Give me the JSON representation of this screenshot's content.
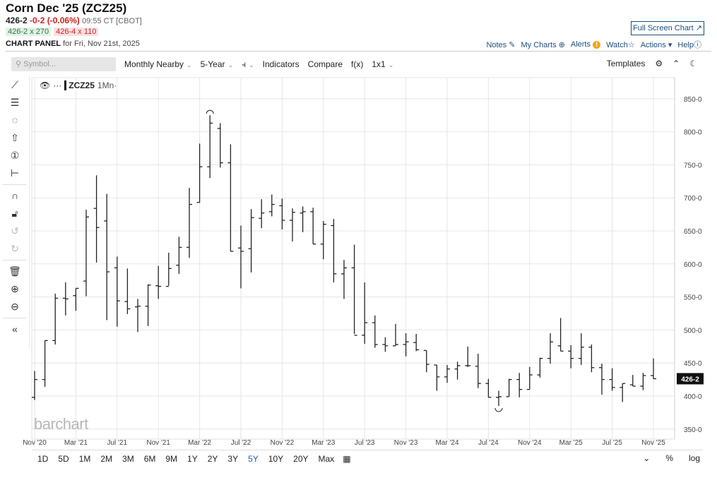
{
  "header": {
    "title": "Corn Dec '25 (ZCZ25)",
    "last": "426-2",
    "change": "-0-2 (-0.06%)",
    "time": "09:55 CT [CBOT]",
    "bid": "426-2 x 270",
    "ask": "426-4 x 110",
    "panel_label": "CHART PANEL",
    "panel_date": "for Fri, Nov 21st, 2025",
    "full_screen": "Full Screen Chart ↗"
  },
  "links": {
    "notes": "Notes",
    "my_charts": "My Charts",
    "alerts": "Alerts",
    "watch": "Watch",
    "actions": "Actions",
    "help": "Help"
  },
  "toolbar": {
    "symbol_placeholder": "Symbol...",
    "period": "Monthly Nearby",
    "range": "5-Year",
    "indicators": "Indicators",
    "compare": "Compare",
    "fx": "f(x)",
    "layout": "1x1",
    "templates": "Templates"
  },
  "legend": {
    "symbol": "ZCZ25",
    "interval": "1Mn·"
  },
  "watermark": "barchart",
  "range_buttons": [
    "1D",
    "5D",
    "1M",
    "2M",
    "3M",
    "6M",
    "9M",
    "1Y",
    "2Y",
    "3Y",
    "5Y",
    "10Y",
    "20Y",
    "Max"
  ],
  "active_range": "5Y",
  "bottom_right": {
    "percent": "%",
    "log": "log"
  },
  "colors": {
    "bars": "#222222",
    "grid": "#e6e6e6",
    "link": "#1d4f7c",
    "down": "#d0201a"
  },
  "chart_data": {
    "type": "ohlc",
    "ylim": [
      350,
      850
    ],
    "yticks": [
      350,
      400,
      450,
      500,
      550,
      600,
      650,
      700,
      750,
      800,
      850
    ],
    "ytick_labels": [
      "350-0",
      "400-0",
      "450-0",
      "500-0",
      "550-0",
      "600-0",
      "650-0",
      "700-0",
      "750-0",
      "800-0",
      "850-0"
    ],
    "last_price_label": "426-2",
    "last_price": 426.25,
    "xtick_labels": [
      {
        "i": 0,
        "label": "Nov '20"
      },
      {
        "i": 4,
        "label": "Mar '21"
      },
      {
        "i": 8,
        "label": "Jul '21"
      },
      {
        "i": 12,
        "label": "Nov '21"
      },
      {
        "i": 16,
        "label": "Mar '22"
      },
      {
        "i": 20,
        "label": "Jul '22"
      },
      {
        "i": 24,
        "label": "Nov '22"
      },
      {
        "i": 28,
        "label": "Mar '23"
      },
      {
        "i": 32,
        "label": "Jul '23"
      },
      {
        "i": 36,
        "label": "Nov '23"
      },
      {
        "i": 40,
        "label": "Mar '24"
      },
      {
        "i": 44,
        "label": "Jul '24"
      },
      {
        "i": 48,
        "label": "Nov '24"
      },
      {
        "i": 52,
        "label": "Mar '25"
      },
      {
        "i": 56,
        "label": "Jul '25"
      },
      {
        "i": 60,
        "label": "Nov '25"
      }
    ],
    "high_marker_index": 17,
    "low_marker_index": 45,
    "bars": [
      [
        398,
        438,
        394,
        425
      ],
      [
        425,
        484,
        414,
        484
      ],
      [
        484,
        555,
        478,
        548
      ],
      [
        548,
        572,
        522,
        547
      ],
      [
        552,
        563,
        529,
        563
      ],
      [
        574,
        682,
        551,
        671
      ],
      [
        684,
        734,
        602,
        655
      ],
      [
        665,
        706,
        515,
        588
      ],
      [
        594,
        611,
        505,
        544
      ],
      [
        543,
        593,
        524,
        532
      ],
      [
        535,
        547,
        497,
        536
      ],
      [
        536,
        569,
        506,
        568
      ],
      [
        567,
        597,
        547,
        566
      ],
      [
        566,
        617,
        567,
        593
      ],
      [
        598,
        641,
        585,
        625
      ],
      [
        625,
        715,
        609,
        690
      ],
      [
        693,
        782,
        693,
        747
      ],
      [
        747,
        825,
        730,
        813
      ],
      [
        805,
        813,
        746,
        753
      ],
      [
        753,
        781,
        619,
        619
      ],
      [
        624,
        658,
        563,
        619
      ],
      [
        623,
        683,
        587,
        670
      ],
      [
        669,
        698,
        654,
        677
      ],
      [
        679,
        705,
        672,
        690
      ],
      [
        688,
        699,
        652,
        666
      ],
      [
        666,
        684,
        634,
        678
      ],
      [
        677,
        687,
        648,
        679
      ],
      [
        679,
        685,
        630,
        630
      ],
      [
        630,
        665,
        607,
        660
      ],
      [
        658,
        668,
        572,
        585
      ],
      [
        585,
        606,
        547,
        594
      ],
      [
        594,
        629,
        494,
        492
      ],
      [
        492,
        572,
        479,
        511
      ],
      [
        511,
        522,
        473,
        478
      ],
      [
        478,
        489,
        467,
        476
      ],
      [
        476,
        509,
        476,
        478
      ],
      [
        478,
        495,
        460,
        482
      ],
      [
        481,
        494,
        468,
        470
      ],
      [
        469,
        469,
        436,
        448
      ],
      [
        447,
        447,
        408,
        429
      ],
      [
        429,
        447,
        420,
        441
      ],
      [
        441,
        452,
        425,
        446
      ],
      [
        446,
        475,
        444,
        446
      ],
      [
        445,
        464,
        412,
        419
      ],
      [
        419,
        426,
        398,
        398
      ],
      [
        398,
        408,
        385,
        399
      ],
      [
        399,
        426,
        399,
        425
      ],
      [
        425,
        435,
        398,
        410
      ],
      [
        410,
        444,
        410,
        432
      ],
      [
        432,
        458,
        428,
        457
      ],
      [
        457,
        495,
        449,
        482
      ],
      [
        476,
        518,
        468,
        468
      ],
      [
        468,
        477,
        442,
        457
      ],
      [
        457,
        495,
        447,
        474
      ],
      [
        474,
        478,
        436,
        443
      ],
      [
        443,
        449,
        402,
        425
      ],
      [
        425,
        442,
        408,
        413
      ],
      [
        413,
        419,
        391,
        419
      ],
      [
        417,
        432,
        415,
        415
      ],
      [
        415,
        435,
        409,
        431
      ],
      [
        431,
        457,
        426,
        426.25
      ]
    ]
  }
}
